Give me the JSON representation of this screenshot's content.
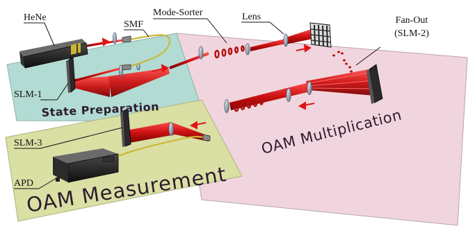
{
  "zones": {
    "state_preparation": "State Preparation",
    "oam_multiplication": "OAM Multiplication",
    "oam_measurement": "OAM Measurement"
  },
  "labels": {
    "hene": "HeNe",
    "smf": "SMF",
    "mode_sorter": "Mode-Sorter",
    "lens": "Lens",
    "fan_out_line1": "Fan-Out",
    "fan_out_line2": "(SLM-2)",
    "slm1": "SLM-1",
    "slm3": "SLM-3",
    "apd": "APD"
  },
  "colors": {
    "state_prep_panel": "#b2dbd3",
    "multiplication_panel": "#f1d5de",
    "measurement_panel": "#dadfa4",
    "beam": "#cc1111",
    "arrow": "#e01515",
    "fiber": "#c9b83a",
    "zone_text": "#2c1c2e"
  },
  "icons": {
    "laser": "hene-laser-icon",
    "detector": "apd-detector-icon",
    "slm": "slm-panel-icon",
    "lens": "lens-disc-icon"
  }
}
